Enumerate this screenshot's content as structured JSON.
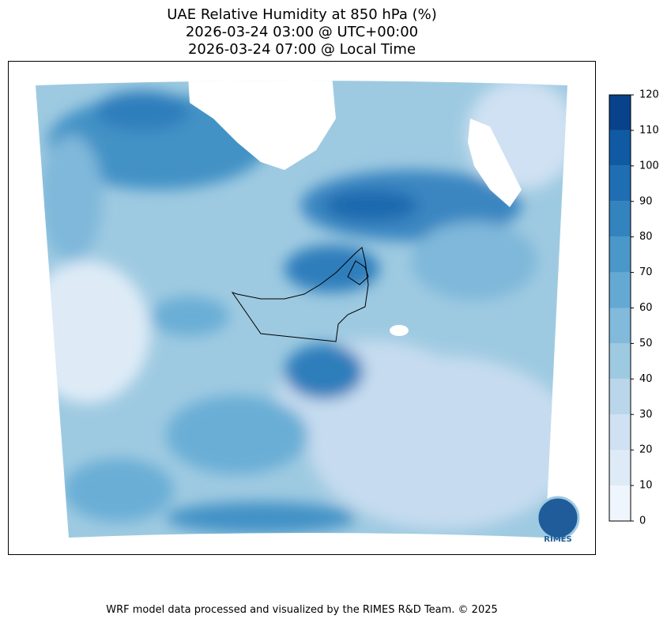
{
  "header": {
    "title": "UAE Relative Humidity at 850 hPa (%)",
    "utc_time": "2026-03-24 03:00 @ UTC+00:00",
    "local_time": "2026-03-24 07:00 @ Local Time"
  },
  "colorbar": {
    "ticks": [
      0,
      10,
      20,
      30,
      40,
      50,
      60,
      70,
      80,
      90,
      100,
      110,
      120
    ],
    "colors": [
      "#eff5fc",
      "#deebf7",
      "#cfe1f2",
      "#b9d6ea",
      "#9ecae1",
      "#81badb",
      "#64a9d3",
      "#4a98c9",
      "#3383be",
      "#1f6eb3",
      "#0f5aa3",
      "#08428a"
    ]
  },
  "logo": {
    "label": "RIMES"
  },
  "footer": {
    "credit": "WRF model data processed and visualized by the RIMES R&D Team. © 2025"
  }
}
